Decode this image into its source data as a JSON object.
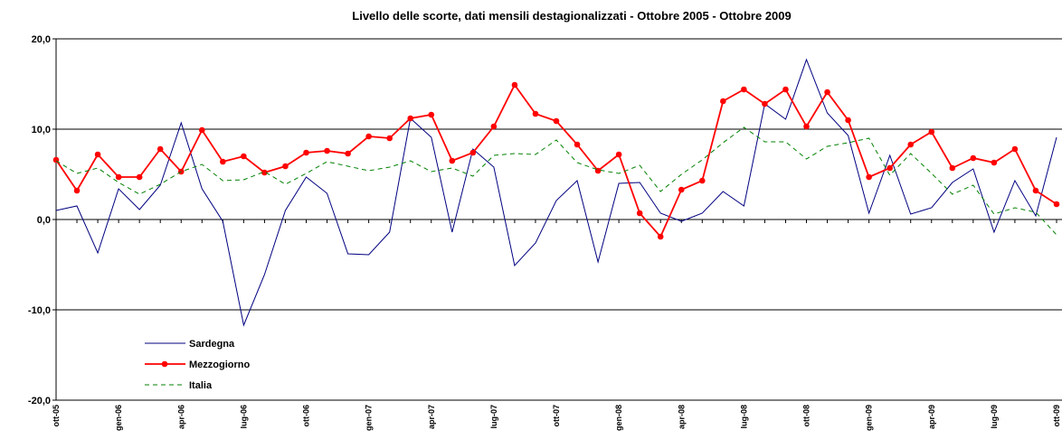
{
  "chart_data": {
    "type": "line",
    "title": "Livello delle scorte, dati mensili destagionalizzati - Ottobre 2005 - Ottobre 2009",
    "categories": [
      "ott-05",
      null,
      null,
      "gen-06",
      null,
      null,
      "apr-06",
      null,
      null,
      "lug-06",
      null,
      null,
      "ott-06",
      null,
      null,
      "gen-07",
      null,
      null,
      "apr-07",
      null,
      null,
      "lug-07",
      null,
      null,
      "ott-07",
      null,
      null,
      "gen-08",
      null,
      null,
      "apr-08",
      null,
      null,
      "lug-08",
      null,
      null,
      "ott-08",
      null,
      null,
      "gen-09",
      null,
      null,
      "apr-09",
      null,
      null,
      "lug-09",
      null,
      null,
      "ott-09"
    ],
    "series": [
      {
        "name": "Sardegna",
        "color": "#000080",
        "style": "solid",
        "marker": false,
        "values": [
          1.0,
          1.5,
          -3.7,
          3.4,
          1.1,
          3.8,
          10.7,
          3.4,
          -0.2,
          -11.7,
          -6.1,
          1.0,
          4.7,
          2.9,
          -3.8,
          -3.9,
          -1.4,
          11.2,
          9.1,
          -1.4,
          7.8,
          5.8,
          -5.1,
          -2.6,
          2.1,
          4.3,
          -4.7,
          4.0,
          4.1,
          0.7,
          -0.2,
          0.7,
          3.1,
          1.5,
          12.8,
          11.1,
          17.7,
          11.8,
          9.3,
          0.7,
          7.1,
          0.6,
          1.3,
          4.1,
          5.6,
          -1.4,
          4.3,
          0.4,
          9.1
        ]
      },
      {
        "name": "Mezzogiorno",
        "color": "#ff0000",
        "style": "solid",
        "marker": true,
        "values": [
          6.6,
          3.2,
          7.2,
          4.7,
          4.7,
          7.8,
          5.3,
          9.9,
          6.4,
          7.0,
          5.2,
          5.9,
          7.4,
          7.6,
          7.3,
          9.2,
          9.0,
          11.2,
          11.6,
          6.5,
          7.4,
          10.3,
          14.9,
          11.7,
          10.9,
          8.3,
          5.4,
          7.2,
          0.7,
          -1.9,
          3.3,
          4.3,
          13.1,
          14.4,
          12.8,
          14.4,
          10.3,
          14.1,
          11.0,
          4.7,
          5.7,
          8.3,
          9.7,
          5.7,
          6.8,
          6.3,
          7.8,
          3.2,
          1.7
        ]
      },
      {
        "name": "Italia",
        "color": "#008000",
        "style": "dashed",
        "marker": false,
        "values": [
          6.5,
          5.1,
          5.7,
          4.1,
          2.8,
          3.9,
          5.3,
          6.1,
          4.3,
          4.4,
          5.3,
          3.9,
          5.1,
          6.4,
          5.9,
          5.4,
          5.8,
          6.5,
          5.3,
          5.7,
          4.8,
          7.1,
          7.3,
          7.2,
          8.8,
          6.3,
          5.5,
          5.1,
          6.0,
          3.1,
          5.0,
          6.6,
          8.5,
          10.2,
          8.6,
          8.6,
          6.7,
          8.1,
          8.5,
          9.0,
          4.9,
          7.3,
          5.1,
          2.8,
          3.8,
          0.6,
          1.3,
          0.8,
          -1.7
        ]
      }
    ],
    "ylim": [
      -20,
      20
    ],
    "yticks": [
      {
        "value": -20,
        "label": "-20,0"
      },
      {
        "value": -10,
        "label": "-10,0"
      },
      {
        "value": 0,
        "label": "0,0"
      },
      {
        "value": 10,
        "label": "10,0"
      },
      {
        "value": 20,
        "label": "20,0"
      }
    ],
    "grid": true,
    "legend": "lower left"
  }
}
